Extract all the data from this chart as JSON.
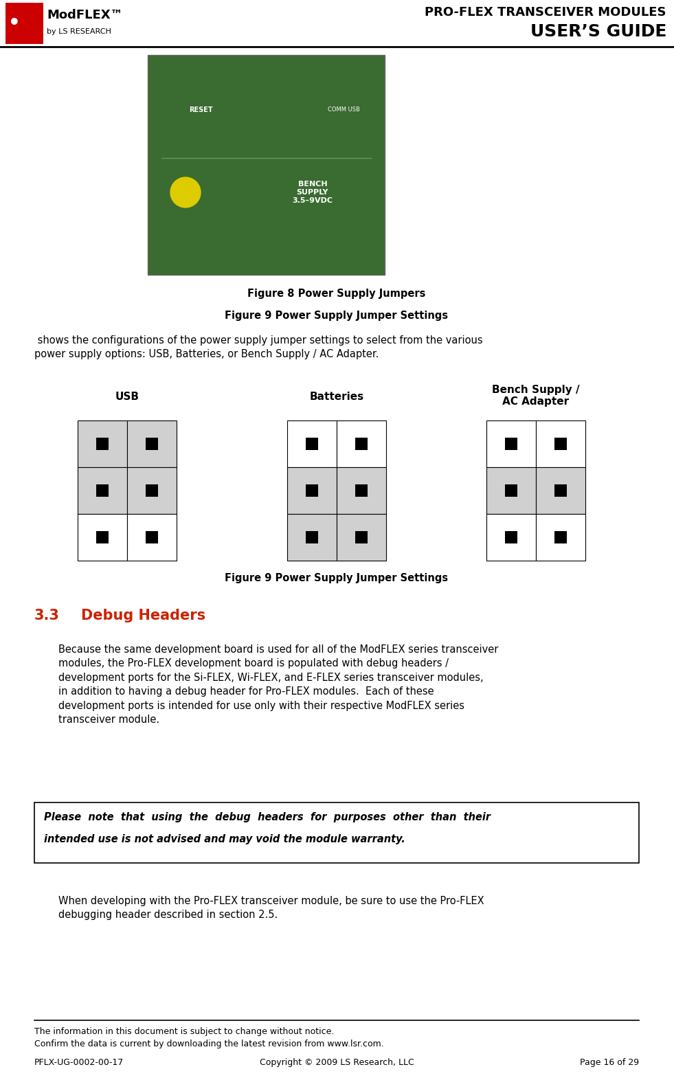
{
  "page_width": 9.81,
  "page_height": 15.69,
  "bg_color": "#ffffff",
  "header_title_line1": "PRO-FLEX TRANSCEIVER MODULES",
  "header_title_line2": "USER’S GUIDE",
  "figure8_caption": "Figure 8 Power Supply Jumpers",
  "figure9_ref_caption": "Figure 9 Power Supply Jumper Settings",
  "body_text1": " shows the configurations of the power supply jumper settings to select from the various\npower supply options: USB, Batteries, or Bench Supply / AC Adapter.",
  "jumper_labels": [
    "USB",
    "Batteries",
    "Bench Supply /\nAC Adapter"
  ],
  "figure9_caption": "Figure 9 Power Supply Jumper Settings",
  "section_number": "3.3",
  "section_title": "Debug Headers",
  "section_color": "#cc2200",
  "body_text2": "Because the same development board is used for all of the ModFLEX series transceiver\nmodules, the Pro-FLEX development board is populated with debug headers /\ndevelopment ports for the Si-FLEX, Wi-FLEX, and E-FLEX series transceiver modules,\nin addition to having a debug header for Pro-FLEX modules.  Each of these\ndevelopment ports is intended for use only with their respective ModFLEX series\ntransceiver module.",
  "note_text_line1": "Please  note  that  using  the  debug  headers  for  purposes  other  than  their",
  "note_text_line2": "intended use is not advised and may void the module warranty.",
  "body_text3": "When developing with the Pro-FLEX transceiver module, be sure to use the Pro-FLEX\ndebugging header described in section 2.5.",
  "footer_line1": "The information in this document is subject to change without notice.",
  "footer_line2": "Confirm the data is current by downloading the latest revision from www.lsr.com.",
  "footer_left": "PFLX-UG-0002-00-17",
  "footer_center": "Copyright © 2009 LS Research, LLC",
  "footer_right": "Page 16 of 29",
  "gray_color": "#d0d0d0",
  "usb_shaded_rows": [
    0,
    1
  ],
  "batteries_shaded_rows": [
    1,
    2
  ],
  "bench_shaded_rows": [
    1
  ]
}
